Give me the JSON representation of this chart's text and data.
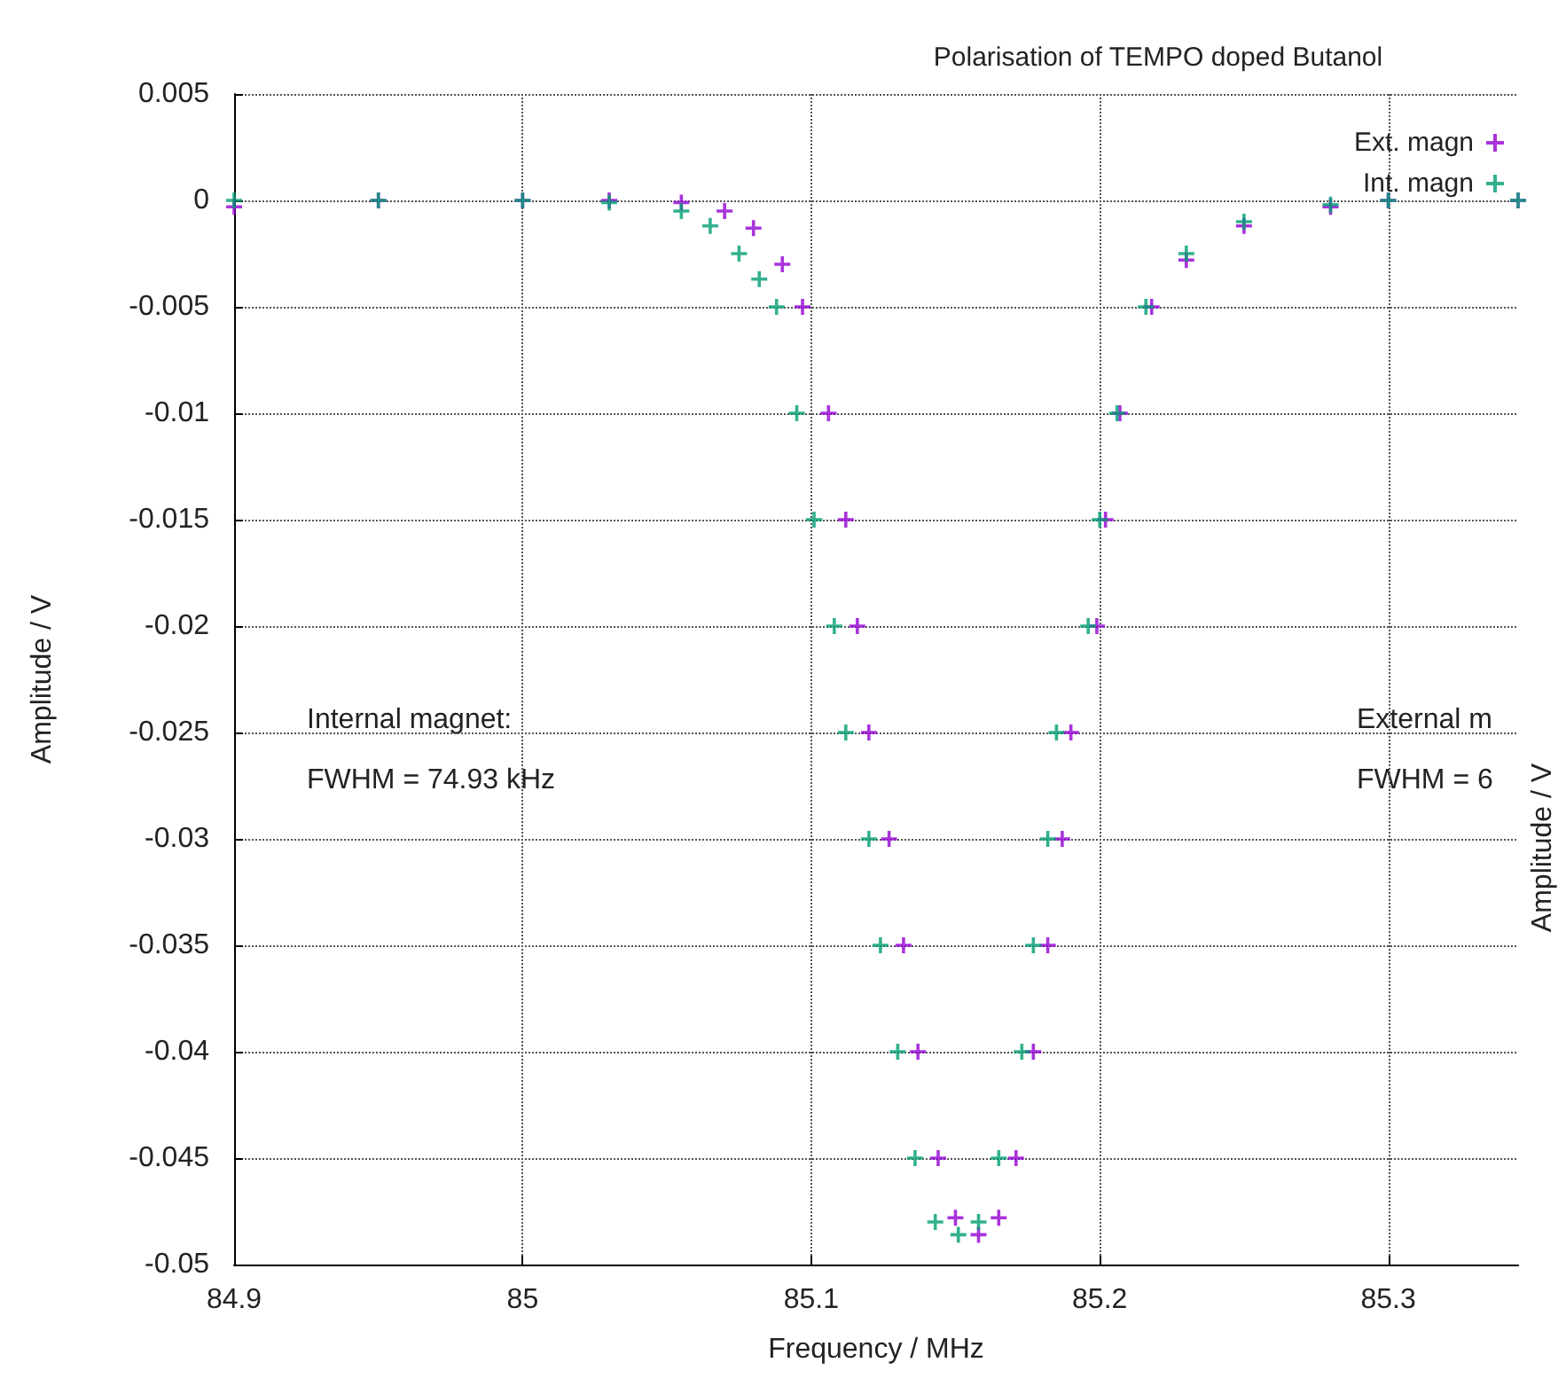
{
  "chart_data": {
    "type": "scatter",
    "title": "Polarisation of TEMPO doped Butanol",
    "xlabel": "Frequency / MHz",
    "ylabel": "Amplitude / V",
    "y2label": "Amplitude / V",
    "annotations": [
      "Internal magnet:",
      "FWHM = 74.93 kHz",
      "External m",
      "FWHM = 6"
    ],
    "xlim": [
      84.9,
      85.345
    ],
    "xticks": [
      84.9,
      85,
      85.1,
      85.2,
      85.3
    ],
    "ylim": [
      -0.05,
      0.005
    ],
    "yticks": [
      -0.05,
      -0.045,
      -0.04,
      -0.035,
      -0.03,
      -0.025,
      -0.02,
      -0.015,
      -0.01,
      -0.005,
      0,
      0.005
    ],
    "grid": true,
    "legend": "top right",
    "marker": "cross",
    "series": [
      {
        "name": "Ext. magn",
        "color": "#9400d3",
        "x": [
          84.9,
          84.95,
          85,
          85.03,
          85.055,
          85.07,
          85.08,
          85.09,
          85.097,
          85.106,
          85.112,
          85.116,
          85.12,
          85.127,
          85.132,
          85.137,
          85.144,
          85.15,
          85.158,
          85.165,
          85.171,
          85.177,
          85.182,
          85.187,
          85.19,
          85.199,
          85.202,
          85.207,
          85.218,
          85.23,
          85.25,
          85.28,
          85.3,
          85.345
        ],
        "values": [
          -0.0003,
          0,
          0,
          0,
          -0.0001,
          -0.0005,
          -0.0013,
          -0.003,
          -0.005,
          -0.01,
          -0.015,
          -0.02,
          -0.025,
          -0.03,
          -0.035,
          -0.04,
          -0.045,
          -0.0478,
          -0.0486,
          -0.0478,
          -0.045,
          -0.04,
          -0.035,
          -0.03,
          -0.025,
          -0.02,
          -0.015,
          -0.01,
          -0.005,
          -0.0028,
          -0.0012,
          -0.0003,
          0,
          0
        ]
      },
      {
        "name": "Int. magn",
        "color": "#009e73",
        "x": [
          84.9,
          84.95,
          85,
          85.03,
          85.055,
          85.065,
          85.075,
          85.082,
          85.088,
          85.095,
          85.101,
          85.108,
          85.112,
          85.12,
          85.124,
          85.13,
          85.136,
          85.143,
          85.151,
          85.158,
          85.165,
          85.173,
          85.177,
          85.182,
          85.185,
          85.196,
          85.2,
          85.206,
          85.216,
          85.23,
          85.25,
          85.28,
          85.3,
          85.345
        ],
        "values": [
          0,
          0,
          0,
          -0.0001,
          -0.0005,
          -0.0012,
          -0.0025,
          -0.0037,
          -0.005,
          -0.01,
          -0.015,
          -0.02,
          -0.025,
          -0.03,
          -0.035,
          -0.04,
          -0.045,
          -0.048,
          -0.0486,
          -0.048,
          -0.045,
          -0.04,
          -0.035,
          -0.03,
          -0.025,
          -0.02,
          -0.015,
          -0.01,
          -0.005,
          -0.0025,
          -0.001,
          -0.0002,
          0,
          0
        ]
      }
    ]
  }
}
